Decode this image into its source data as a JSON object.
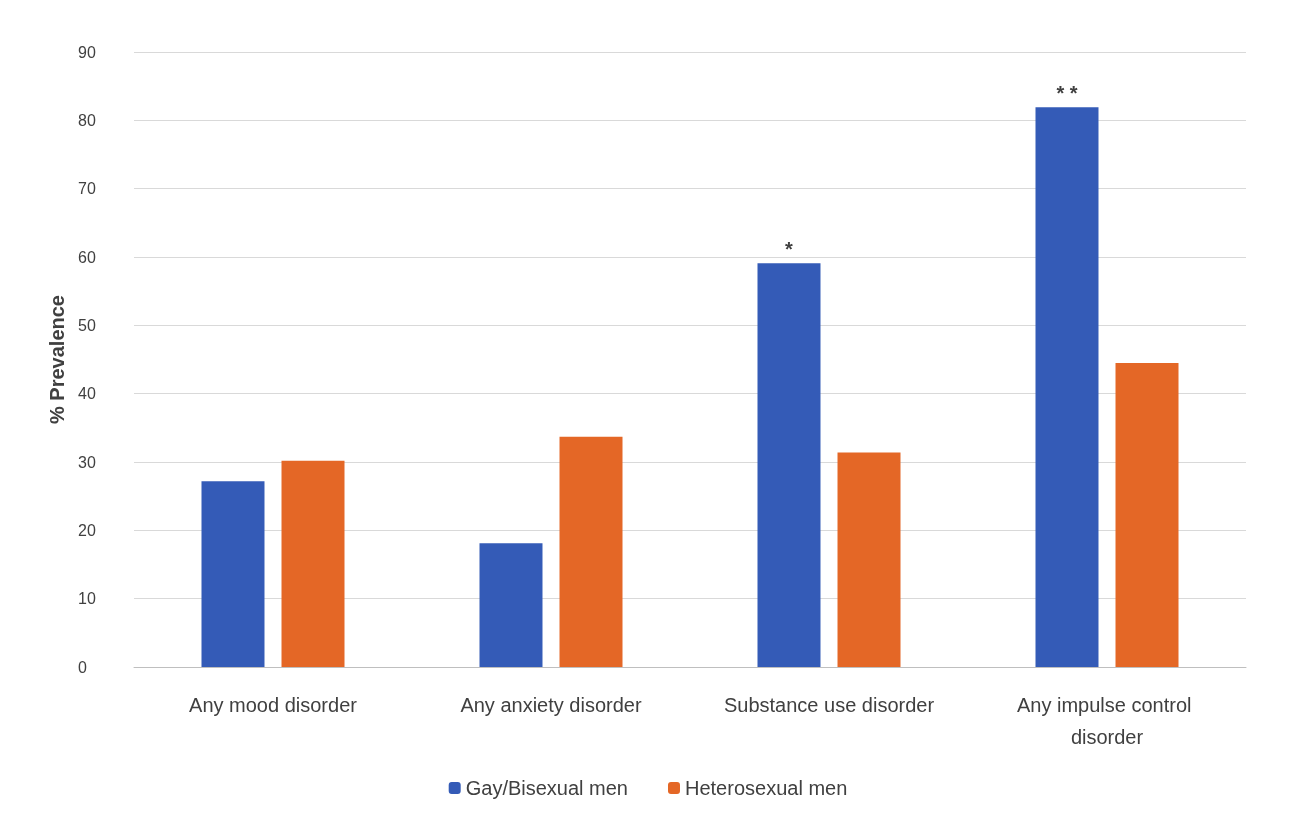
{
  "chart_data": {
    "type": "bar",
    "ylabel": "% Prevalence",
    "categories": [
      "Any mood disorder",
      "Any anxiety disorder",
      "Substance use disorder",
      "Any impulse control disorder"
    ],
    "series": [
      {
        "name": "Gay/Bisexual men",
        "color": "#345bb7",
        "values": [
          27.2,
          18.1,
          59.1,
          81.9
        ]
      },
      {
        "name": "Heterosexual men",
        "color": "#e46726",
        "values": [
          30.2,
          33.7,
          31.4,
          44.5
        ]
      }
    ],
    "ylim": [
      0,
      90
    ],
    "yticks": [
      0,
      10,
      20,
      30,
      40,
      50,
      60,
      70,
      80,
      90
    ],
    "grid": "y",
    "legend": "bottom",
    "annotations": [
      "*",
      "* *"
    ]
  }
}
